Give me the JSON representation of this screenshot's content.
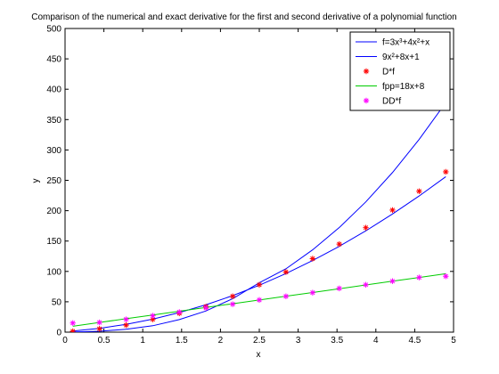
{
  "chart_data": {
    "type": "line",
    "title": "Comparison of the numerical and exact derivative for the first and second derivative of a polynomial function",
    "xlabel": "x",
    "ylabel": "y",
    "xlim": [
      0,
      5
    ],
    "ylim": [
      0,
      500
    ],
    "xticks": [
      "0",
      "0.5",
      "1",
      "1.5",
      "2",
      "2.5",
      "3",
      "3.5",
      "4",
      "4.5",
      "5"
    ],
    "yticks": [
      "0",
      "50",
      "100",
      "150",
      "200",
      "250",
      "300",
      "350",
      "400",
      "450",
      "500"
    ],
    "grid": false,
    "legend_position": "top-right",
    "series": [
      {
        "name": "f=3x³+4x²+x",
        "style": "line",
        "color": "#0000ff",
        "x": [
          0.1,
          0.443,
          0.786,
          1.129,
          1.471,
          1.814,
          2.157,
          2.5,
          2.843,
          3.186,
          3.529,
          3.871,
          4.214,
          4.557,
          4.9
        ],
        "y": [
          0.143,
          1.486,
          4.716,
          10.551,
          20.7,
          34.9,
          55.1,
          81.25,
          104.3,
          135.5,
          172.2,
          214.5,
          262.8,
          317.3,
          378.0
        ]
      },
      {
        "name": "9x²+8x+1",
        "style": "line",
        "color": "#0000ff",
        "x": [
          0.1,
          0.443,
          0.786,
          1.129,
          1.471,
          1.814,
          2.157,
          2.5,
          2.843,
          3.186,
          3.529,
          3.871,
          4.214,
          4.557,
          4.9
        ],
        "y": [
          1.89,
          6.31,
          12.85,
          21.5,
          32.2,
          45.1,
          60.1,
          77.3,
          96.5,
          117.9,
          141.3,
          166.8,
          194.5,
          224.2,
          256.0
        ]
      },
      {
        "name": "D*f",
        "style": "marker",
        "marker": "*",
        "color": "#ff0000",
        "x": [
          0.1,
          0.443,
          0.786,
          1.129,
          1.471,
          1.814,
          2.157,
          2.5,
          2.843,
          3.186,
          3.529,
          3.871,
          4.214,
          4.557,
          4.9
        ],
        "y": [
          1.5,
          5.5,
          11.5,
          21,
          31,
          42,
          59,
          78,
          99,
          121,
          145,
          172,
          201,
          232,
          264
        ]
      },
      {
        "name": "fpp=18x+8",
        "style": "line",
        "color": "#00cc00",
        "x": [
          0.1,
          0.443,
          0.786,
          1.129,
          1.471,
          1.814,
          2.157,
          2.5,
          2.843,
          3.186,
          3.529,
          3.871,
          4.214,
          4.557,
          4.9
        ],
        "y": [
          9.8,
          16.0,
          22.1,
          28.3,
          34.5,
          40.7,
          46.8,
          53.0,
          59.2,
          65.3,
          71.5,
          77.7,
          83.9,
          90.0,
          96.2
        ]
      },
      {
        "name": "DD*f",
        "style": "marker",
        "marker": "*",
        "color": "#ff00ff",
        "x": [
          0.1,
          0.443,
          0.786,
          1.129,
          1.471,
          1.814,
          2.157,
          2.5,
          2.843,
          3.186,
          3.529,
          3.871,
          4.214,
          4.557,
          4.9
        ],
        "y": [
          15,
          16,
          21,
          27,
          33,
          40,
          46,
          53,
          59,
          65,
          72,
          78,
          84,
          90,
          92
        ]
      }
    ]
  }
}
